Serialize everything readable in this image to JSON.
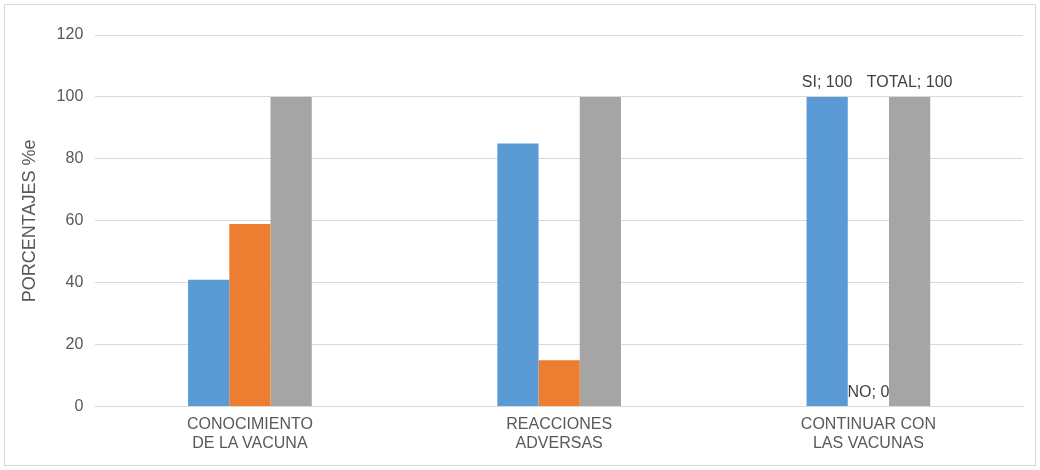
{
  "chart_data": {
    "type": "bar",
    "ylabel": "PORCENTAJES %e",
    "categories": [
      "CONOCIMIENTO DE LA VACUNA",
      "REACCIONES ADVERSAS",
      "CONTINUAR CON LAS VACUNAS"
    ],
    "series": [
      {
        "color": "#5b9bd5",
        "values": [
          41,
          85,
          100
        ],
        "value_labels": [
          null,
          null,
          "SI; 100"
        ]
      },
      {
        "color": "#ed7d31",
        "values": [
          59,
          15,
          0
        ],
        "value_labels": [
          null,
          null,
          "NO; 0"
        ]
      },
      {
        "color": "#a5a5a5",
        "values": [
          100,
          100,
          100
        ],
        "value_labels": [
          null,
          null,
          "TOTAL; 100"
        ]
      }
    ],
    "ylim": [
      0,
      120
    ],
    "yticks": [
      0,
      20,
      40,
      60,
      80,
      100,
      120
    ],
    "grid": "y",
    "legend": false
  }
}
